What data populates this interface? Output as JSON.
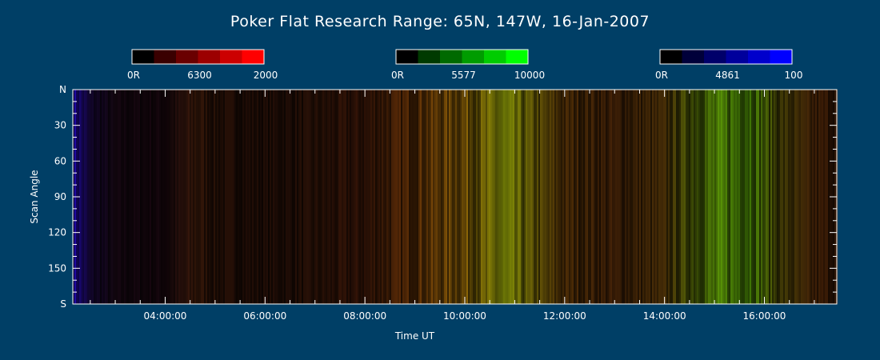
{
  "title": "Poker Flat Research Range: 65N, 147W, 16-Jan-2007",
  "colors": {
    "background": "#003f66",
    "axis": "#ffffff",
    "plot_background": "#05040a"
  },
  "colorbars": [
    {
      "name": "6300",
      "min_label": "0R",
      "mid_label": "6300",
      "max_label": "2000",
      "scale_colors": [
        "#000000",
        "#3a0000",
        "#6a0000",
        "#9c0000",
        "#cc0000",
        "#ff0000"
      ]
    },
    {
      "name": "5577",
      "min_label": "0R",
      "mid_label": "5577",
      "max_label": "10000",
      "scale_colors": [
        "#000000",
        "#003a00",
        "#006a00",
        "#009c00",
        "#00cc00",
        "#00ff00"
      ]
    },
    {
      "name": "4861",
      "min_label": "0R",
      "mid_label": "4861",
      "max_label": "100",
      "scale_colors": [
        "#000000",
        "#00003a",
        "#00006a",
        "#00009c",
        "#0000cc",
        "#0000ff"
      ]
    }
  ],
  "chart_data": {
    "type": "heatmap",
    "title": "Poker Flat Research Range: 65N, 147W, 16-Jan-2007",
    "xlabel": "Time UT",
    "ylabel": "Scan Angle",
    "xlim": [
      2.15,
      17.45
    ],
    "x_unit": "hours UT",
    "ylim": [
      0,
      180
    ],
    "y_direction": "N at top, S at bottom",
    "x_ticks": [
      {
        "value": 4,
        "label": "04:00:00"
      },
      {
        "value": 6,
        "label": "06:00:00"
      },
      {
        "value": 8,
        "label": "08:00:00"
      },
      {
        "value": 10,
        "label": "10:00:00"
      },
      {
        "value": 12,
        "label": "12:00:00"
      },
      {
        "value": 14,
        "label": "14:00:00"
      },
      {
        "value": 16,
        "label": "16:00:00"
      }
    ],
    "y_ticks": [
      {
        "value": 0,
        "label": "N"
      },
      {
        "value": 30,
        "label": "30"
      },
      {
        "value": 60,
        "label": "60"
      },
      {
        "value": 90,
        "label": "90"
      },
      {
        "value": 120,
        "label": "120"
      },
      {
        "value": 150,
        "label": "150"
      },
      {
        "value": 180,
        "label": "S"
      }
    ],
    "intensity_profile": [
      {
        "t": 2.15,
        "red": 0.1,
        "green": 0.03,
        "blue": 0.55
      },
      {
        "t": 2.5,
        "red": 0.06,
        "green": 0.02,
        "blue": 0.15
      },
      {
        "t": 3.0,
        "red": 0.06,
        "green": 0.02,
        "blue": 0.05
      },
      {
        "t": 4.0,
        "red": 0.07,
        "green": 0.02,
        "blue": 0.04
      },
      {
        "t": 4.6,
        "red": 0.18,
        "green": 0.08,
        "blue": 0.03
      },
      {
        "t": 5.0,
        "red": 0.12,
        "green": 0.05,
        "blue": 0.02
      },
      {
        "t": 6.0,
        "red": 0.1,
        "green": 0.04,
        "blue": 0.02
      },
      {
        "t": 7.0,
        "red": 0.12,
        "green": 0.05,
        "blue": 0.02
      },
      {
        "t": 8.0,
        "red": 0.16,
        "green": 0.06,
        "blue": 0.02
      },
      {
        "t": 9.0,
        "red": 0.3,
        "green": 0.15,
        "blue": 0.02
      },
      {
        "t": 10.0,
        "red": 0.4,
        "green": 0.28,
        "blue": 0.02
      },
      {
        "t": 10.8,
        "red": 0.38,
        "green": 0.42,
        "blue": 0.02
      },
      {
        "t": 11.5,
        "red": 0.3,
        "green": 0.25,
        "blue": 0.02
      },
      {
        "t": 12.0,
        "red": 0.24,
        "green": 0.14,
        "blue": 0.02
      },
      {
        "t": 13.0,
        "red": 0.2,
        "green": 0.1,
        "blue": 0.02
      },
      {
        "t": 14.0,
        "red": 0.22,
        "green": 0.14,
        "blue": 0.02
      },
      {
        "t": 15.0,
        "red": 0.26,
        "green": 0.42,
        "blue": 0.02
      },
      {
        "t": 15.7,
        "red": 0.24,
        "green": 0.45,
        "blue": 0.02
      },
      {
        "t": 16.3,
        "red": 0.22,
        "green": 0.2,
        "blue": 0.02
      },
      {
        "t": 17.0,
        "red": 0.2,
        "green": 0.1,
        "blue": 0.02
      },
      {
        "t": 17.45,
        "red": 0.18,
        "green": 0.08,
        "blue": 0.02
      }
    ]
  }
}
